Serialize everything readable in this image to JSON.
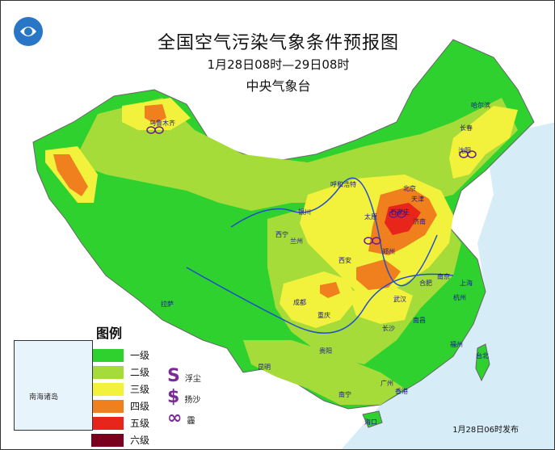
{
  "header": {
    "title": "全国空气污染气象条件预报图",
    "period": "1月28日08时—29日08时",
    "issuer": "中央气象台"
  },
  "legend": {
    "title": "图例",
    "levels": [
      {
        "label": "一级",
        "color": "#2fd12f"
      },
      {
        "label": "二级",
        "color": "#a6dc3a"
      },
      {
        "label": "三级",
        "color": "#f2f23c"
      },
      {
        "label": "四级",
        "color": "#f07f1e"
      },
      {
        "label": "五级",
        "color": "#e8251b"
      },
      {
        "label": "六级",
        "color": "#7a0020"
      }
    ],
    "symbols": [
      {
        "glyph": "S",
        "label": "浮尘",
        "icon": "floating-dust-icon"
      },
      {
        "glyph": "$",
        "label": "扬沙",
        "icon": "blowing-sand-icon"
      },
      {
        "glyph": "∞",
        "label": "霾",
        "icon": "haze-icon"
      }
    ]
  },
  "inset": {
    "label": "南海诸岛"
  },
  "footer": {
    "published": "1月28日06时发布"
  },
  "cities": [
    {
      "name": "乌鲁木齐"
    },
    {
      "name": "哈尔滨"
    },
    {
      "name": "长春"
    },
    {
      "name": "沈阳"
    },
    {
      "name": "呼和浩特"
    },
    {
      "name": "北京"
    },
    {
      "name": "天津"
    },
    {
      "name": "石家庄"
    },
    {
      "name": "太原"
    },
    {
      "name": "济南"
    },
    {
      "name": "银川"
    },
    {
      "name": "西宁"
    },
    {
      "name": "兰州"
    },
    {
      "name": "郑州"
    },
    {
      "name": "西安"
    },
    {
      "name": "合肥"
    },
    {
      "name": "南京"
    },
    {
      "name": "上海"
    },
    {
      "name": "武汉"
    },
    {
      "name": "杭州"
    },
    {
      "name": "成都"
    },
    {
      "name": "重庆"
    },
    {
      "name": "长沙"
    },
    {
      "name": "南昌"
    },
    {
      "name": "福州"
    },
    {
      "name": "贵阳"
    },
    {
      "name": "台北"
    },
    {
      "name": "昆明"
    },
    {
      "name": "拉萨"
    },
    {
      "name": "南宁"
    },
    {
      "name": "广州"
    },
    {
      "name": "香港"
    },
    {
      "name": "海口"
    }
  ],
  "colors": {
    "sea": "#d6ecf7",
    "border": "#8a8a8a",
    "river": "#1e4fc7"
  }
}
